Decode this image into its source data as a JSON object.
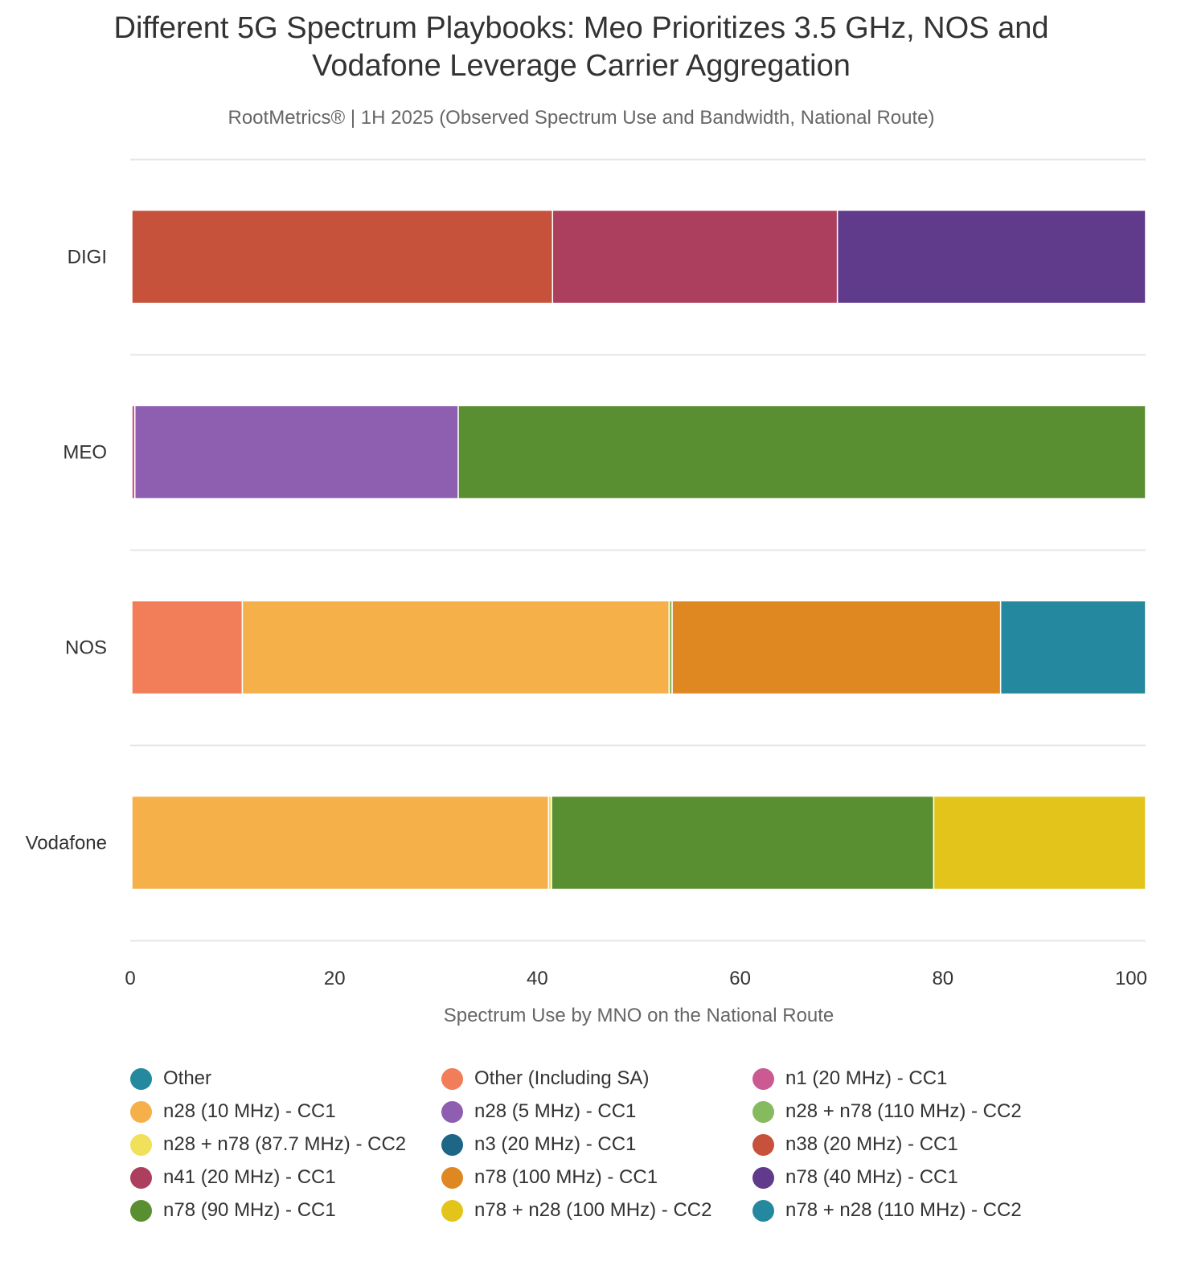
{
  "chart_data": {
    "type": "bar",
    "orientation": "horizontal",
    "stacked": true,
    "title": "Different 5G Spectrum Playbooks: Meo Prioritizes 3.5 GHz, NOS and Vodafone Leverage Carrier Aggregation",
    "title_lines": [
      "Different 5G Spectrum Playbooks: Meo Prioritizes 3.5 GHz, NOS and",
      "Vodafone Leverage Carrier Aggregation"
    ],
    "subtitle": "RootMetrics® | 1H 2025 (Observed Spectrum Use and Bandwidth, National Route)",
    "xlabel": "Spectrum Use by MNO on the National Route",
    "ylabel": "",
    "xlim": [
      0,
      100
    ],
    "xticks": [
      "0",
      "20",
      "40",
      "60",
      "80",
      "100"
    ],
    "grid": true,
    "legend_position": "bottom",
    "categories": [
      "DIGI",
      "MEO",
      "NOS",
      "Vodafone"
    ],
    "series": [
      {
        "name": "Other",
        "color": "#24889e",
        "values": [
          0,
          0,
          0,
          0
        ]
      },
      {
        "name": "Other (Including SA)",
        "color": "#f17e58",
        "values": [
          0,
          0,
          10.9,
          0
        ]
      },
      {
        "name": "n1 (20 MHz) - CC1",
        "color": "#cc5a92",
        "values": [
          0,
          0.3,
          0,
          0
        ]
      },
      {
        "name": "n28 (10 MHz) - CC1",
        "color": "#f6b04a",
        "values": [
          0,
          0,
          42.1,
          41.1
        ]
      },
      {
        "name": "n28 (5 MHz) - CC1",
        "color": "#8e5eb0",
        "values": [
          0,
          31.9,
          0,
          0
        ]
      },
      {
        "name": "n28 + n78 (110 MHz) - CC2",
        "color": "#86ba5e",
        "values": [
          0,
          0,
          0.3,
          0
        ]
      },
      {
        "name": "n28 + n78 (87.7 MHz) - CC2",
        "color": "#f0e05a",
        "values": [
          0,
          0,
          0,
          0.3
        ]
      },
      {
        "name": "n3 (20 MHz) - CC1",
        "color": "#1e6685",
        "values": [
          0,
          0,
          0,
          0
        ]
      },
      {
        "name": "n38 (20 MHz) - CC1",
        "color": "#c7523b",
        "values": [
          41.5,
          0,
          0,
          0
        ]
      },
      {
        "name": "n41 (20 MHz) - CC1",
        "color": "#ad3f5e",
        "values": [
          28.1,
          0,
          0,
          0
        ]
      },
      {
        "name": "n78 (100 MHz) - CC1",
        "color": "#df8822",
        "values": [
          0,
          0,
          32.4,
          0
        ]
      },
      {
        "name": "n78 (40 MHz) - CC1",
        "color": "#603a8b",
        "values": [
          30.4,
          0,
          0,
          0
        ]
      },
      {
        "name": "n78 (90 MHz) - CC1",
        "color": "#5a8f31",
        "values": [
          0,
          67.8,
          0,
          37.7
        ]
      },
      {
        "name": "n78 + n28 (100 MHz) - CC2",
        "color": "#e3c41a",
        "values": [
          0,
          0,
          0,
          20.9
        ]
      },
      {
        "name": "n78 + n28 (110 MHz) - CC2",
        "color": "#24889e",
        "values": [
          0,
          0,
          14.3,
          0
        ]
      }
    ],
    "stack_order": [
      [
        "n38 (20 MHz) - CC1",
        "n41 (20 MHz) - CC1",
        "n78 (40 MHz) - CC1"
      ],
      [
        "n1 (20 MHz) - CC1",
        "n28 (5 MHz) - CC1",
        "n78 (90 MHz) - CC1"
      ],
      [
        "Other (Including SA)",
        "n28 (10 MHz) - CC1",
        "n28 + n78 (110 MHz) - CC2",
        "n78 (100 MHz) - CC1",
        "n78 + n28 (110 MHz) - CC2"
      ],
      [
        "n28 (10 MHz) - CC1",
        "n28 + n78 (87.7 MHz) - CC2",
        "n78 (90 MHz) - CC1",
        "n78 + n28 (100 MHz) - CC2"
      ]
    ]
  }
}
